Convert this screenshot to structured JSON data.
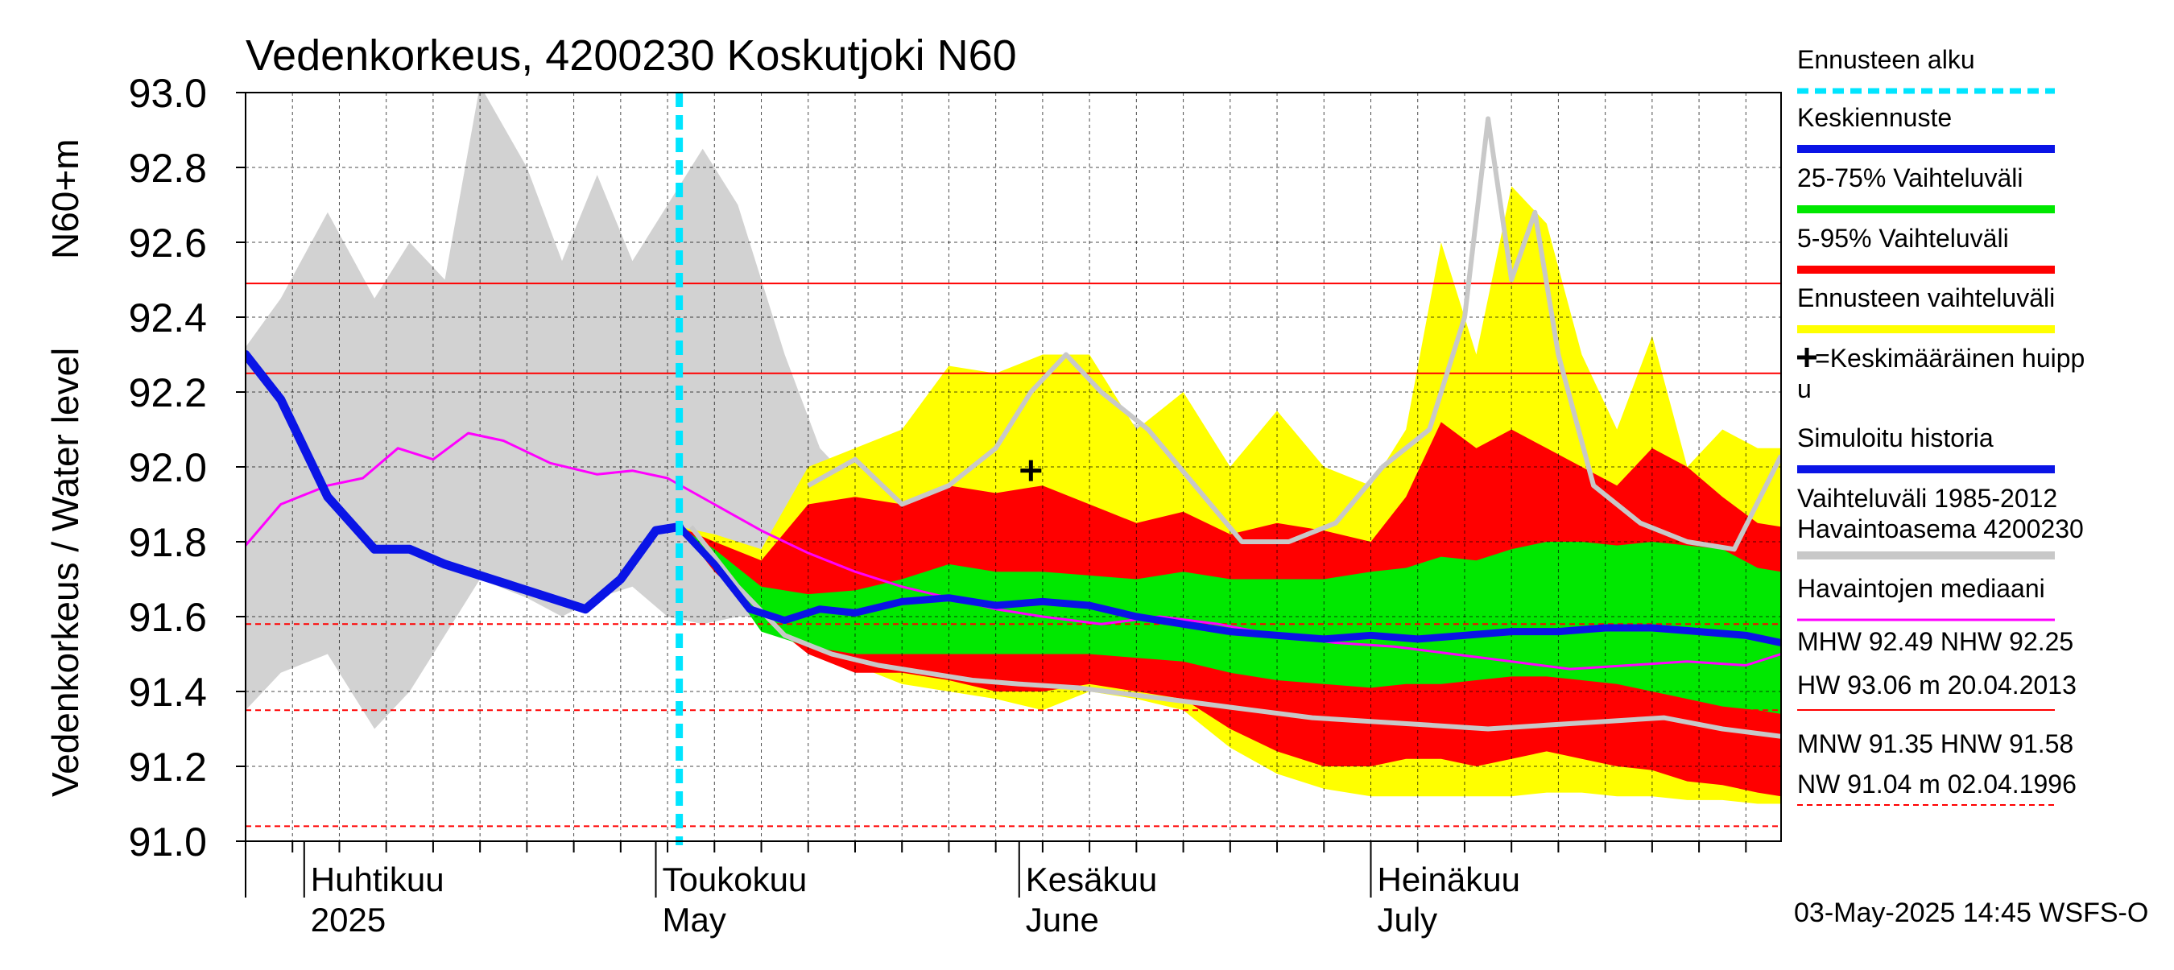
{
  "chart_data": {
    "type": "area",
    "title": "Vedenkorkeus, 4200230 Koskutjoki N60",
    "ylabel_line1": "N60+m",
    "ylabel_line2": "Vedenkorkeus / Water level",
    "ylim": [
      91.0,
      93.0
    ],
    "yticks": [
      "91.0",
      "91.2",
      "91.4",
      "91.6",
      "91.8",
      "92.0",
      "92.2",
      "92.4",
      "92.6",
      "92.8",
      "93.0"
    ],
    "x_start": "2025-03-27",
    "x_end": "2025-08-05",
    "months": [
      {
        "fi": "Huhtikuu",
        "en": "2025",
        "date": "2025-04-01"
      },
      {
        "fi": "Toukokuu",
        "en": "May",
        "date": "2025-05-01"
      },
      {
        "fi": "Kesäkuu",
        "en": "June",
        "date": "2025-06-01"
      },
      {
        "fi": "Heinäkuu",
        "en": "July",
        "date": "2025-07-01"
      }
    ],
    "forecast_start": "2025-05-03",
    "mean_peak": {
      "date": "2025-06-02",
      "value": 91.99
    },
    "reference_lines": [
      {
        "name": "MHW",
        "value": 92.49,
        "style": "solid"
      },
      {
        "name": "NHW",
        "value": 92.25,
        "style": "solid"
      },
      {
        "name": "HNW",
        "value": 91.58,
        "style": "dashed"
      },
      {
        "name": "MNW",
        "value": 91.35,
        "style": "dashed"
      },
      {
        "name": "NW",
        "value": 91.04,
        "style": "dashed"
      }
    ],
    "historical_range": {
      "x": [
        "2025-03-27",
        "2025-03-30",
        "2025-04-03",
        "2025-04-07",
        "2025-04-10",
        "2025-04-13",
        "2025-04-16",
        "2025-04-20",
        "2025-04-23",
        "2025-04-26",
        "2025-04-29",
        "2025-05-02",
        "2025-05-05",
        "2025-05-08",
        "2025-05-12",
        "2025-05-15",
        "2025-05-18",
        "2025-05-22",
        "2025-05-26",
        "2025-05-30",
        "2025-06-03",
        "2025-06-06",
        "2025-06-10",
        "2025-06-13",
        "2025-06-16",
        "2025-06-19"
      ],
      "max": [
        92.32,
        92.45,
        92.68,
        92.45,
        92.6,
        92.5,
        93.02,
        92.8,
        92.55,
        92.78,
        92.55,
        92.7,
        92.85,
        92.7,
        92.3,
        92.05,
        91.95,
        92.05,
        91.95,
        92.0,
        92.05,
        92.25,
        92.12,
        92.1,
        92.05,
        91.98
      ],
      "min": [
        91.35,
        91.45,
        91.5,
        91.3,
        91.4,
        91.55,
        91.7,
        91.65,
        91.6,
        91.65,
        91.68,
        91.6,
        91.58,
        91.6,
        91.6,
        91.55,
        91.6,
        91.72,
        91.75,
        91.88,
        91.9,
        92.0,
        92.0,
        92.02,
        92.0,
        91.98
      ]
    },
    "forecast_range_outer": {
      "x": [
        "2025-05-03",
        "2025-05-06",
        "2025-05-10",
        "2025-05-14",
        "2025-05-18",
        "2025-05-22",
        "2025-05-26",
        "2025-05-30",
        "2025-06-03",
        "2025-06-07",
        "2025-06-11",
        "2025-06-15",
        "2025-06-19",
        "2025-06-23",
        "2025-06-27",
        "2025-07-01",
        "2025-07-04",
        "2025-07-07",
        "2025-07-10",
        "2025-07-13",
        "2025-07-16",
        "2025-07-19",
        "2025-07-22",
        "2025-07-25",
        "2025-07-28",
        "2025-07-31",
        "2025-08-03",
        "2025-08-05"
      ],
      "max": [
        91.84,
        91.82,
        91.78,
        92.0,
        92.05,
        92.1,
        92.27,
        92.25,
        92.3,
        92.3,
        92.1,
        92.2,
        92.0,
        92.15,
        92.0,
        91.95,
        92.1,
        92.6,
        92.3,
        92.75,
        92.65,
        92.3,
        92.1,
        92.35,
        92.0,
        92.1,
        92.05,
        92.05
      ],
      "min": [
        91.84,
        91.75,
        91.65,
        91.55,
        91.47,
        91.42,
        91.4,
        91.38,
        91.35,
        91.4,
        91.38,
        91.35,
        91.25,
        91.18,
        91.14,
        91.12,
        91.12,
        91.12,
        91.12,
        91.12,
        91.13,
        91.13,
        91.12,
        91.12,
        91.11,
        91.11,
        91.1,
        91.1
      ]
    },
    "forecast_range_5_95": {
      "x": [
        "2025-05-03",
        "2025-05-06",
        "2025-05-10",
        "2025-05-14",
        "2025-05-18",
        "2025-05-22",
        "2025-05-26",
        "2025-05-30",
        "2025-06-03",
        "2025-06-07",
        "2025-06-11",
        "2025-06-15",
        "2025-06-19",
        "2025-06-23",
        "2025-06-27",
        "2025-07-01",
        "2025-07-04",
        "2025-07-07",
        "2025-07-10",
        "2025-07-13",
        "2025-07-16",
        "2025-07-19",
        "2025-07-22",
        "2025-07-25",
        "2025-07-28",
        "2025-07-31",
        "2025-08-03",
        "2025-08-05"
      ],
      "max": [
        91.84,
        91.8,
        91.75,
        91.9,
        91.92,
        91.9,
        91.95,
        91.93,
        91.95,
        91.9,
        91.85,
        91.88,
        91.82,
        91.85,
        91.83,
        91.8,
        91.92,
        92.12,
        92.05,
        92.1,
        92.05,
        92.0,
        91.95,
        92.05,
        92.0,
        91.92,
        91.85,
        91.84
      ],
      "min": [
        91.84,
        91.72,
        91.6,
        91.5,
        91.45,
        91.45,
        91.43,
        91.4,
        91.4,
        91.42,
        91.4,
        91.38,
        91.3,
        91.24,
        91.2,
        91.2,
        91.22,
        91.22,
        91.2,
        91.22,
        91.24,
        91.22,
        91.2,
        91.19,
        91.16,
        91.15,
        91.13,
        91.12
      ]
    },
    "forecast_range_25_75": {
      "x": [
        "2025-05-03",
        "2025-05-06",
        "2025-05-10",
        "2025-05-14",
        "2025-05-18",
        "2025-05-22",
        "2025-05-26",
        "2025-05-30",
        "2025-06-03",
        "2025-06-07",
        "2025-06-11",
        "2025-06-15",
        "2025-06-19",
        "2025-06-23",
        "2025-06-27",
        "2025-07-01",
        "2025-07-04",
        "2025-07-07",
        "2025-07-10",
        "2025-07-13",
        "2025-07-16",
        "2025-07-19",
        "2025-07-22",
        "2025-07-25",
        "2025-07-28",
        "2025-07-31",
        "2025-08-03",
        "2025-08-05"
      ],
      "max": [
        91.84,
        91.78,
        91.68,
        91.66,
        91.67,
        91.7,
        91.74,
        91.72,
        91.72,
        91.71,
        91.7,
        91.72,
        91.7,
        91.7,
        91.7,
        91.72,
        91.73,
        91.76,
        91.75,
        91.78,
        91.8,
        91.8,
        91.79,
        91.8,
        91.79,
        91.78,
        91.73,
        91.72
      ],
      "min": [
        91.84,
        91.74,
        91.56,
        91.52,
        91.5,
        91.5,
        91.5,
        91.5,
        91.5,
        91.5,
        91.49,
        91.48,
        91.45,
        91.43,
        91.42,
        91.41,
        91.42,
        91.42,
        91.43,
        91.44,
        91.44,
        91.43,
        91.42,
        91.4,
        91.38,
        91.36,
        91.35,
        91.34
      ]
    },
    "series": [
      {
        "name": "Keskiennuste",
        "x": [
          "2025-03-27",
          "2025-03-30",
          "2025-04-03",
          "2025-04-07",
          "2025-04-10",
          "2025-04-13",
          "2025-04-17",
          "2025-04-21",
          "2025-04-25",
          "2025-04-28",
          "2025-05-01",
          "2025-05-03",
          "2025-05-06",
          "2025-05-09",
          "2025-05-12",
          "2025-05-15",
          "2025-05-18",
          "2025-05-22",
          "2025-05-26",
          "2025-05-30",
          "2025-06-03",
          "2025-06-07",
          "2025-06-11",
          "2025-06-15",
          "2025-06-19",
          "2025-06-23",
          "2025-06-27",
          "2025-07-01",
          "2025-07-05",
          "2025-07-09",
          "2025-07-13",
          "2025-07-17",
          "2025-07-21",
          "2025-07-25",
          "2025-07-29",
          "2025-08-02",
          "2025-08-05"
        ],
        "values": [
          92.3,
          92.18,
          91.92,
          91.78,
          91.78,
          91.74,
          91.7,
          91.66,
          91.62,
          91.7,
          91.83,
          91.84,
          91.74,
          91.62,
          91.59,
          91.62,
          91.61,
          91.64,
          91.65,
          91.63,
          91.64,
          91.63,
          91.6,
          91.58,
          91.56,
          91.55,
          91.54,
          91.55,
          91.54,
          91.55,
          91.56,
          91.56,
          91.57,
          91.57,
          91.56,
          91.55,
          91.53
        ]
      },
      {
        "name": "Simuloitu historia",
        "x": [
          "2025-03-27",
          "2025-03-30",
          "2025-04-03",
          "2025-04-07",
          "2025-04-10",
          "2025-04-13",
          "2025-04-17",
          "2025-04-21",
          "2025-04-25",
          "2025-04-28",
          "2025-05-01",
          "2025-05-03"
        ],
        "values": [
          92.3,
          92.18,
          91.92,
          91.78,
          91.78,
          91.74,
          91.7,
          91.66,
          91.62,
          91.7,
          91.83,
          91.84
        ]
      },
      {
        "name": "Havaintojen mediaani",
        "x": [
          "2025-03-27",
          "2025-03-30",
          "2025-04-03",
          "2025-04-06",
          "2025-04-09",
          "2025-04-12",
          "2025-04-15",
          "2025-04-18",
          "2025-04-22",
          "2025-04-26",
          "2025-04-29",
          "2025-05-02",
          "2025-05-06",
          "2025-05-10",
          "2025-05-14",
          "2025-05-18",
          "2025-05-22",
          "2025-05-26",
          "2025-05-30",
          "2025-06-03",
          "2025-06-08",
          "2025-06-13",
          "2025-06-18",
          "2025-06-23",
          "2025-06-28",
          "2025-07-03",
          "2025-07-08",
          "2025-07-13",
          "2025-07-18",
          "2025-07-23",
          "2025-07-28",
          "2025-08-02",
          "2025-08-05"
        ],
        "values": [
          91.79,
          91.9,
          91.95,
          91.97,
          92.05,
          92.02,
          92.09,
          92.07,
          92.01,
          91.98,
          91.99,
          91.97,
          91.9,
          91.83,
          91.77,
          91.72,
          91.68,
          91.65,
          91.62,
          91.6,
          91.58,
          91.6,
          91.58,
          91.55,
          91.53,
          91.52,
          91.5,
          91.48,
          91.46,
          91.47,
          91.48,
          91.47,
          91.5
        ]
      },
      {
        "name": "Havaintoasema 4200230",
        "x": [
          "2025-05-04",
          "2025-05-08",
          "2025-05-12",
          "2025-05-16",
          "2025-05-20",
          "2025-05-24",
          "2025-05-28",
          "2025-06-01",
          "2025-06-06",
          "2025-06-11",
          "2025-06-16",
          "2025-06-21",
          "2025-06-26",
          "2025-07-01",
          "2025-07-06",
          "2025-07-11",
          "2025-07-16",
          "2025-07-21",
          "2025-07-26",
          "2025-07-31",
          "2025-08-05"
        ],
        "values": [
          91.84,
          91.68,
          91.55,
          91.5,
          91.47,
          91.45,
          91.43,
          91.42,
          91.41,
          91.39,
          91.37,
          91.35,
          91.33,
          91.32,
          91.31,
          91.3,
          91.31,
          91.32,
          91.33,
          91.3,
          91.28
        ]
      },
      {
        "name": "Vaihteluväli 1985-2012 Havaintoasema 4200230 (viiva)",
        "x": [
          "2025-05-14",
          "2025-05-18",
          "2025-05-22",
          "2025-05-26",
          "2025-05-30",
          "2025-06-02",
          "2025-06-05",
          "2025-06-08",
          "2025-06-12",
          "2025-06-16",
          "2025-06-20",
          "2025-06-24",
          "2025-06-28",
          "2025-07-02",
          "2025-07-06",
          "2025-07-09",
          "2025-07-11",
          "2025-07-13",
          "2025-07-15",
          "2025-07-17",
          "2025-07-20",
          "2025-07-24",
          "2025-07-28",
          "2025-08-01",
          "2025-08-05"
        ],
        "values": [
          91.95,
          92.02,
          91.9,
          91.95,
          92.05,
          92.2,
          92.3,
          92.2,
          92.1,
          91.95,
          91.8,
          91.8,
          91.85,
          92.0,
          92.1,
          92.4,
          92.93,
          92.5,
          92.68,
          92.3,
          91.95,
          91.85,
          91.8,
          91.78,
          92.03
        ]
      }
    ]
  },
  "legend": [
    {
      "label": "Ennusteen alku",
      "color": "#00e5ff",
      "kind": "dashed"
    },
    {
      "label": "Keskiennuste",
      "color": "#0a14e6",
      "kind": "thick"
    },
    {
      "label": "25-75% Vaihteluväli",
      "color": "#00e800",
      "kind": "thick"
    },
    {
      "label": "5-95% Vaihteluväli",
      "color": "#ff0000",
      "kind": "thick"
    },
    {
      "label": "Ennusteen vaihteluväli",
      "color": "#ffff00",
      "kind": "thick"
    },
    {
      "label": "=Keskimääräinen huipp",
      "label2": "u",
      "color": "#000000",
      "kind": "plus"
    },
    {
      "label": "Simuloitu historia",
      "color": "#0a14e6",
      "kind": "thick"
    },
    {
      "label": "Vaihteluväli 1985-2012",
      "label2": " Havaintoasema 4200230",
      "color": "#c8c8c8",
      "kind": "thick"
    },
    {
      "label": "Havaintojen mediaani",
      "color": "#ff00ff",
      "kind": "thin"
    }
  ],
  "stats": {
    "line1": "MHW  92.49 NHW  92.25",
    "line2": "HW  93.06 m 20.04.2013",
    "line3": "MNW  91.35 HNW  91.58",
    "line4": "NW  91.04 m 02.04.1996"
  },
  "timestamp": "03-May-2025 14:45 WSFS-O",
  "colors": {
    "outer": "#ffff00",
    "band5_95": "#ff0000",
    "band25_75": "#00e800",
    "mean": "#0a14e6",
    "median": "#ff00ff",
    "history_band": "#d2d2d2",
    "observed": "#c8c8c8",
    "forecast_start": "#00e5ff",
    "reference": "#ff0000"
  }
}
